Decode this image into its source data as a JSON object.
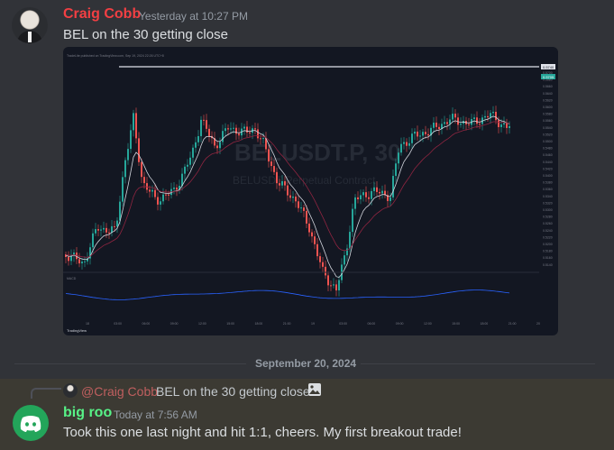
{
  "message1": {
    "username": "Craig Cobb",
    "timestamp": "Yesterday at 10:27 PM",
    "content": "BEL on the 30 getting close",
    "image": {
      "watermark_symbol": "BELUSDT.P, 30",
      "watermark_sub": "BELUSDT Perpetual Contract",
      "header_line": "TradeLite published on TradingView.com, Sep 19, 2024 22:26 UTC+8",
      "publisher_brand": "TradingView",
      "price_tag_top": "0.5740",
      "price_tag_current": "0.5705",
      "indicator_label": "MACD",
      "candle_up_color": "#26a69a",
      "candle_down_color": "#ef5350",
      "price_levels": [
        "0.5700",
        "0.5680",
        "0.5660",
        "0.5640",
        "0.5620",
        "0.5600",
        "0.5580",
        "0.5560",
        "0.5540",
        "0.5520",
        "0.5500",
        "0.5480",
        "0.5460",
        "0.5440",
        "0.5420",
        "0.5400",
        "0.5380",
        "0.5360",
        "0.5340",
        "0.5320",
        "0.5300",
        "0.5280",
        "0.5260",
        "0.5240",
        "0.5220",
        "0.5200",
        "0.5180",
        "0.5160",
        "0.5140"
      ],
      "time_labels": [
        "18",
        "03:00",
        "06:00",
        "09:00",
        "12:00",
        "15:00",
        "18:00",
        "21:00",
        "19",
        "03:00",
        "06:00",
        "09:00",
        "12:00",
        "15:00",
        "18:00",
        "21:00",
        "20"
      ]
    }
  },
  "date_divider": "September 20, 2024",
  "message2": {
    "reply": {
      "mention": "@Craig Cobb",
      "text": "BEL on the 30 getting close",
      "icon": "image-icon"
    },
    "username": "big roo",
    "timestamp": "Today at 7:56 AM",
    "content": "Took this one last night and hit 1:1, cheers. My first breakout trade!",
    "avatar_icon": "discord-logo-icon",
    "avatar_color": "#23a55a"
  }
}
